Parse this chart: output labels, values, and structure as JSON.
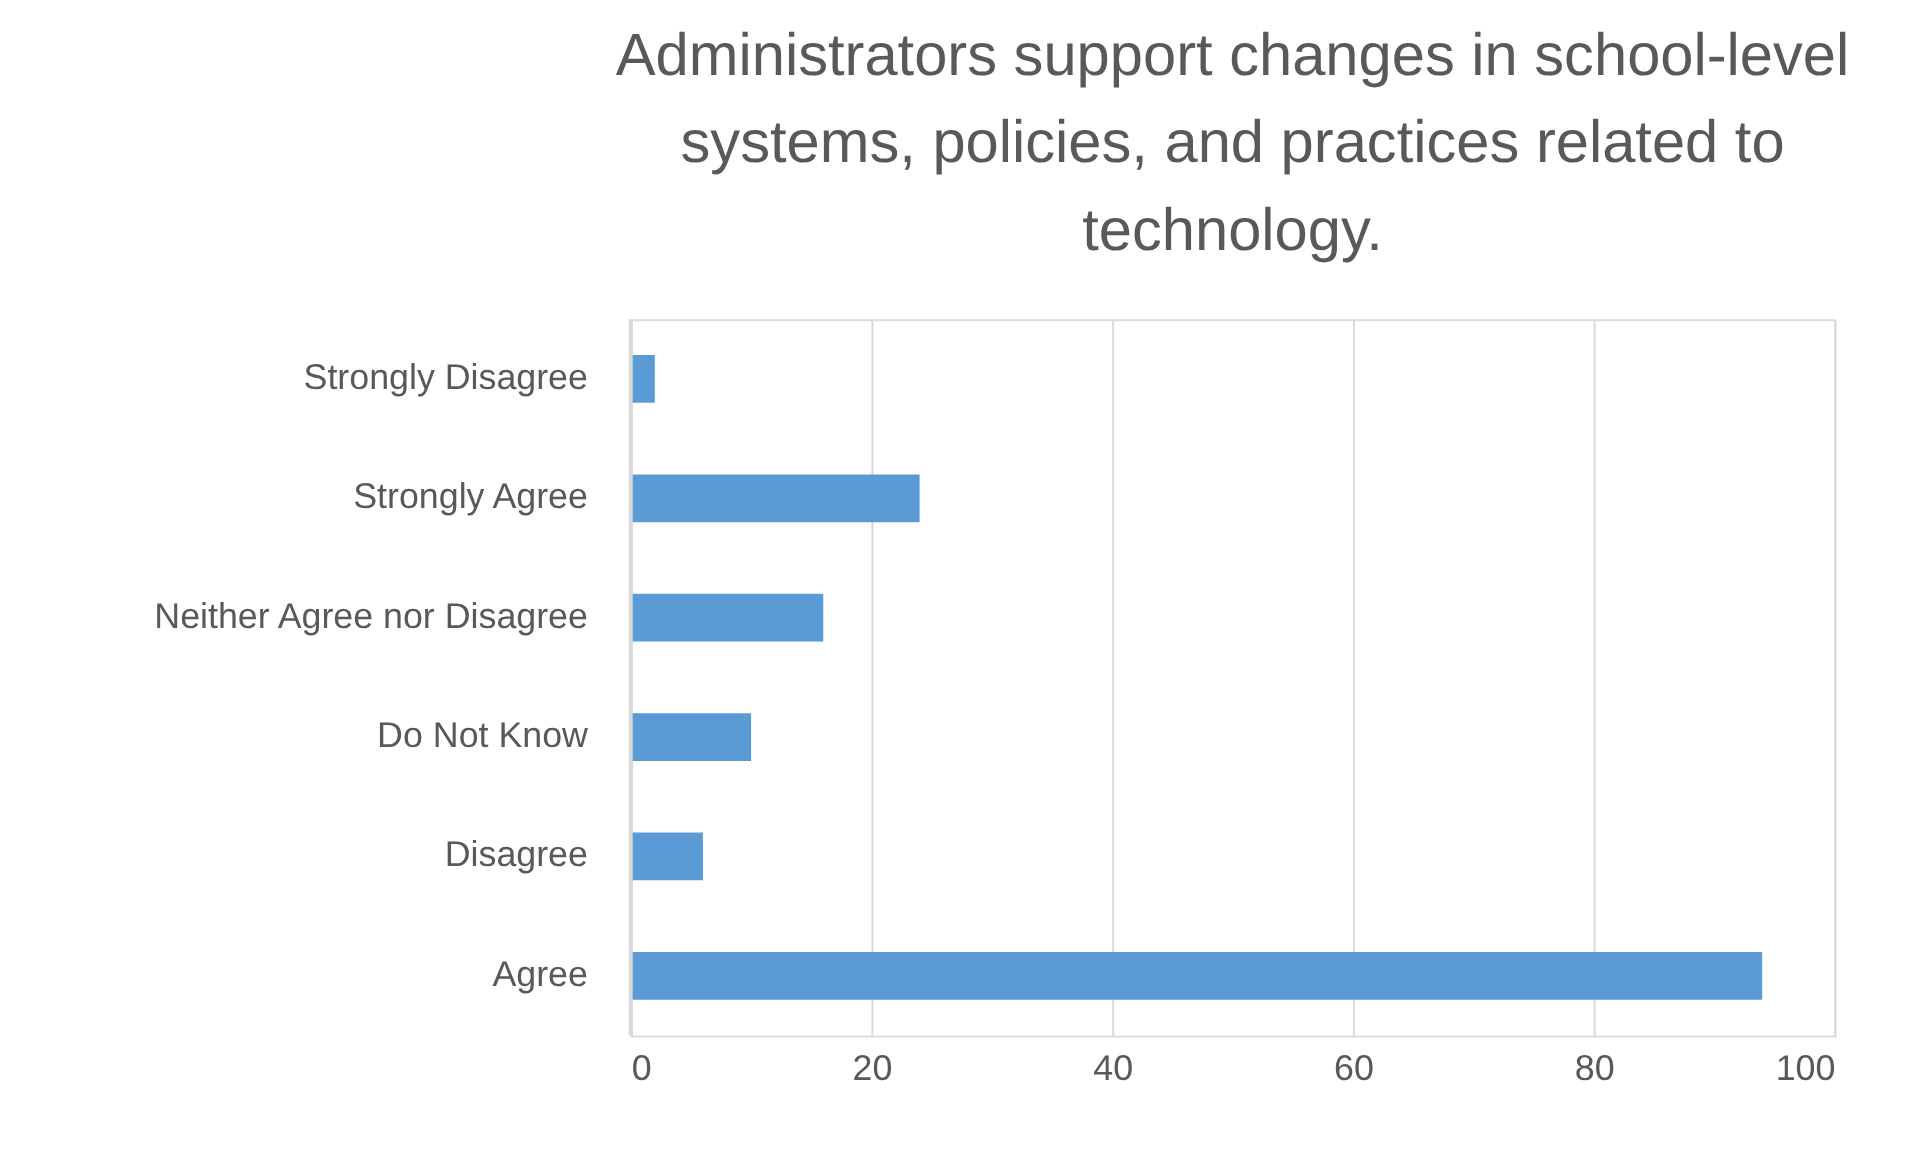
{
  "chart_data": {
    "type": "bar",
    "orientation": "horizontal",
    "title": [
      "Administrators support changes in school-level",
      "systems, policies, and practices related to",
      "technology."
    ],
    "categories": [
      "Strongly Disagree",
      "Strongly Agree",
      "Neither Agree nor Disagree",
      "Do Not Know",
      "Disagree",
      "Agree"
    ],
    "values": [
      2,
      24,
      16,
      10,
      6,
      94
    ],
    "color": "#5b9bd5",
    "xlim": [
      0,
      100
    ],
    "xticks": [
      0,
      20,
      40,
      60,
      80,
      100
    ],
    "grid": "x"
  }
}
